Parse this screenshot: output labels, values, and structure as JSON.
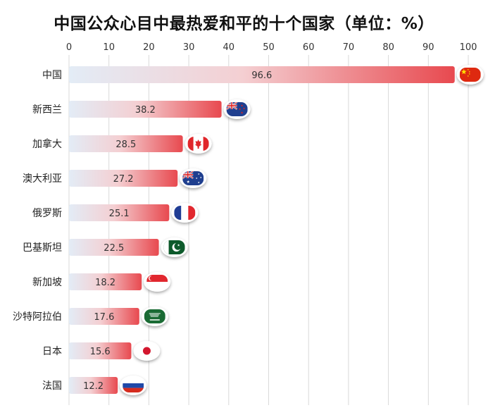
{
  "title": "中国公众心目中最热爱和平的十个国家（单位：%）",
  "chart_data": {
    "type": "bar",
    "orientation": "horizontal",
    "title": "中国公众心目中最热爱和平的十个国家（单位：%）",
    "xlabel": "",
    "ylabel": "",
    "xlim": [
      0,
      100
    ],
    "x_ticks": [
      0,
      10,
      20,
      30,
      40,
      50,
      60,
      70,
      80,
      90,
      100
    ],
    "grid": true,
    "bar_gradient": [
      "#e3ecf6",
      "#f4cfd2",
      "#e8494f"
    ],
    "categories": [
      "中国",
      "新西兰",
      "加拿大",
      "澳大利亚",
      "俄罗斯",
      "巴基斯坦",
      "新加坡",
      "沙特阿拉伯",
      "日本",
      "法国"
    ],
    "values": [
      96.6,
      38.2,
      28.5,
      27.2,
      25.1,
      22.5,
      18.2,
      17.6,
      15.6,
      12.2
    ],
    "flags": [
      "flag-china-icon",
      "flag-new-zealand-icon",
      "flag-canada-icon",
      "flag-australia-icon",
      "flag-france-icon",
      "flag-pakistan-icon",
      "flag-singapore-icon",
      "flag-saudi-arabia-icon",
      "flag-japan-icon",
      "flag-russia-icon"
    ]
  }
}
